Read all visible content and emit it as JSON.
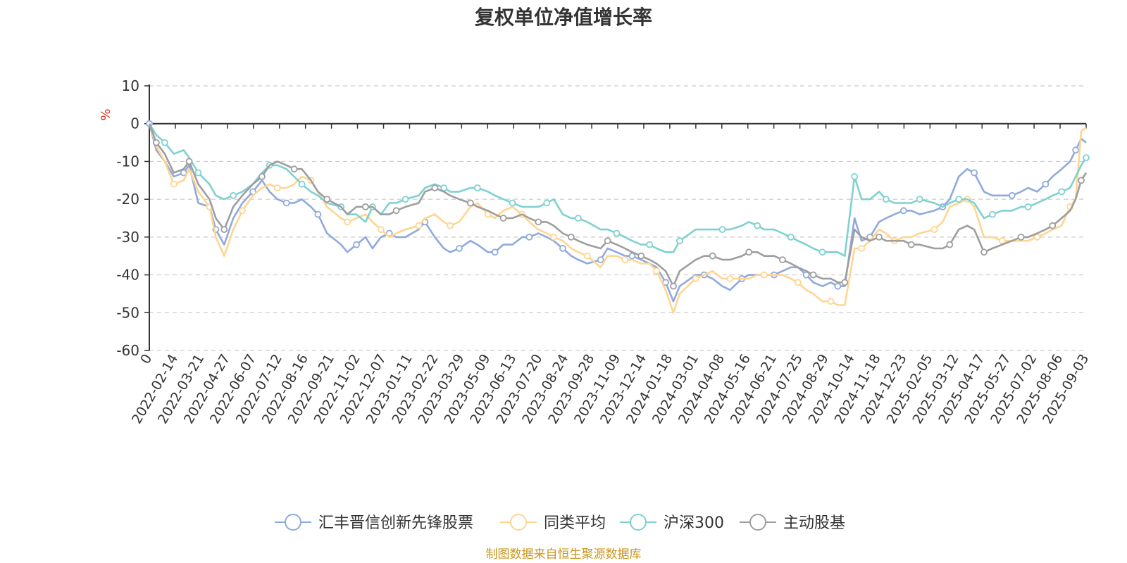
{
  "chart_data": {
    "type": "line",
    "title": "复权单位净值增长率",
    "ylabel": "%",
    "ylim": [
      -60,
      10
    ],
    "yticks": [
      10,
      0,
      -10,
      -20,
      -30,
      -40,
      -50,
      -60
    ],
    "grid": true,
    "legend_position": "bottom",
    "x_start_label": "0",
    "x_tick_labels": [
      "2022-02-14",
      "2022-03-21",
      "2022-04-27",
      "2022-06-07",
      "2022-07-12",
      "2022-08-16",
      "2022-09-21",
      "2022-11-02",
      "2022-12-07",
      "2023-01-11",
      "2023-02-22",
      "2023-03-29",
      "2023-05-09",
      "2023-06-13",
      "2023-07-20",
      "2023-08-24",
      "2023-09-28",
      "2023-11-09",
      "2023-12-14",
      "2024-01-18",
      "2024-03-01",
      "2024-04-08",
      "2024-05-16",
      "2024-06-21",
      "2024-07-25",
      "2024-08-29",
      "2024-10-14",
      "2024-11-18",
      "2024-12-23",
      "2025-02-05",
      "2025-03-12",
      "2025-04-17",
      "2025-05-27",
      "2025-07-02",
      "2025-08-06",
      "2025-09-03"
    ],
    "x": [
      "2022-01-10",
      "2022-01-20",
      "2022-02-01",
      "2022-02-14",
      "2022-02-28",
      "2022-03-08",
      "2022-03-21",
      "2022-04-06",
      "2022-04-15",
      "2022-04-27",
      "2022-05-10",
      "2022-05-23",
      "2022-06-07",
      "2022-06-20",
      "2022-07-01",
      "2022-07-12",
      "2022-07-25",
      "2022-08-05",
      "2022-08-16",
      "2022-08-29",
      "2022-09-08",
      "2022-09-21",
      "2022-10-11",
      "2022-10-20",
      "2022-11-02",
      "2022-11-15",
      "2022-11-25",
      "2022-12-07",
      "2022-12-19",
      "2022-12-29",
      "2023-01-11",
      "2023-01-30",
      "2023-02-08",
      "2023-02-22",
      "2023-03-07",
      "2023-03-16",
      "2023-03-29",
      "2023-04-14",
      "2023-04-24",
      "2023-05-09",
      "2023-05-19",
      "2023-05-31",
      "2023-06-13",
      "2023-06-27",
      "2023-07-07",
      "2023-07-20",
      "2023-08-01",
      "2023-08-11",
      "2023-08-24",
      "2023-09-05",
      "2023-09-15",
      "2023-09-28",
      "2023-10-17",
      "2023-10-27",
      "2023-11-09",
      "2023-11-21",
      "2023-12-01",
      "2023-12-14",
      "2023-12-26",
      "2024-01-05",
      "2024-01-18",
      "2024-01-29",
      "2024-02-07",
      "2024-03-01",
      "2024-03-13",
      "2024-03-25",
      "2024-04-08",
      "2024-04-19",
      "2024-05-06",
      "2024-05-16",
      "2024-05-28",
      "2024-06-07",
      "2024-06-21",
      "2024-07-03",
      "2024-07-15",
      "2024-07-25",
      "2024-08-06",
      "2024-08-16",
      "2024-08-29",
      "2024-09-10",
      "2024-09-20",
      "2024-09-30",
      "2024-10-14",
      "2024-10-24",
      "2024-11-05",
      "2024-11-18",
      "2024-11-28",
      "2024-12-10",
      "2024-12-23",
      "2025-01-03",
      "2025-01-15",
      "2025-02-05",
      "2025-02-17",
      "2025-02-27",
      "2025-03-12",
      "2025-03-24",
      "2025-04-03",
      "2025-04-17",
      "2025-04-29",
      "2025-05-13",
      "2025-05-27",
      "2025-06-09",
      "2025-06-19",
      "2025-07-02",
      "2025-07-14",
      "2025-07-24",
      "2025-08-06",
      "2025-08-18",
      "2025-08-26",
      "2025-09-03",
      "2025-09-10"
    ],
    "series": [
      {
        "name": "汇丰晋信创新先锋股票",
        "color": "#8faadc",
        "values": [
          0,
          -7,
          -10,
          -14,
          -13,
          -11,
          -21,
          -22,
          -28,
          -32,
          -25,
          -21,
          -18,
          -15,
          -18,
          -20,
          -21,
          -21,
          -20,
          -22,
          -24,
          -29,
          -32,
          -34,
          -32,
          -30,
          -33,
          -30,
          -29,
          -30,
          -30,
          -28,
          -26,
          -30,
          -33,
          -34,
          -33,
          -31,
          -32,
          -34,
          -34,
          -32,
          -32,
          -30,
          -30,
          -29,
          -30,
          -31,
          -33,
          -35,
          -36,
          -37,
          -36,
          -33,
          -34,
          -35,
          -35,
          -36,
          -37,
          -38,
          -42,
          -47,
          -43,
          -40,
          -40,
          -41,
          -43,
          -44,
          -41,
          -40,
          -40,
          -40,
          -40,
          -39,
          -38,
          -38,
          -40,
          -42,
          -43,
          -42,
          -43,
          -43,
          -25,
          -31,
          -30,
          -26,
          -25,
          -24,
          -23,
          -23,
          -24,
          -23,
          -22,
          -20,
          -14,
          -12,
          -13,
          -18,
          -19,
          -19,
          -19,
          -18,
          -17,
          -18,
          -16,
          -14,
          -12,
          -10,
          -7,
          -4,
          -5
        ]
      },
      {
        "name": "同类平均",
        "color": "#ffd591",
        "values": [
          0,
          -6,
          -10,
          -16,
          -15,
          -12,
          -18,
          -22,
          -30,
          -35,
          -28,
          -23,
          -19,
          -17,
          -16,
          -17,
          -17,
          -16,
          -14,
          -15,
          -18,
          -22,
          -25,
          -26,
          -25,
          -24,
          -26,
          -28,
          -30,
          -29,
          -28,
          -27,
          -25,
          -24,
          -26,
          -27,
          -26,
          -22,
          -21,
          -24,
          -25,
          -23,
          -22,
          -24,
          -26,
          -28,
          -29,
          -30,
          -31,
          -33,
          -34,
          -35,
          -38,
          -35,
          -35,
          -36,
          -36,
          -37,
          -37,
          -39,
          -44,
          -50,
          -45,
          -41,
          -40,
          -39,
          -41,
          -41,
          -41,
          -41,
          -40,
          -40,
          -40,
          -40,
          -41,
          -42,
          -44,
          -45,
          -47,
          -47,
          -48,
          -48,
          -33,
          -33,
          -31,
          -28,
          -29,
          -31,
          -30,
          -30,
          -29,
          -28,
          -26,
          -22,
          -21,
          -20,
          -22,
          -30,
          -30,
          -31,
          -31,
          -31,
          -31,
          -30,
          -29,
          -28,
          -27,
          -22,
          -20,
          -2,
          -1
        ]
      },
      {
        "name": "沪深300",
        "color": "#7fd1d1",
        "values": [
          0,
          -3,
          -5,
          -8,
          -7,
          -9,
          -13,
          -16,
          -19,
          -20,
          -19,
          -18,
          -16,
          -13,
          -11,
          -11,
          -12,
          -14,
          -16,
          -18,
          -19,
          -21,
          -22,
          -24,
          -24,
          -26,
          -22,
          -24,
          -21,
          -21,
          -20,
          -19,
          -17,
          -16,
          -17,
          -18,
          -18,
          -17,
          -17,
          -18,
          -19,
          -20,
          -21,
          -22,
          -22,
          -22,
          -21,
          -20,
          -24,
          -25,
          -25,
          -26,
          -28,
          -28,
          -29,
          -30,
          -31,
          -32,
          -32,
          -33,
          -34,
          -34,
          -31,
          -28,
          -28,
          -28,
          -28,
          -28,
          -27,
          -26,
          -27,
          -28,
          -28,
          -29,
          -30,
          -31,
          -32,
          -33,
          -34,
          -34,
          -34,
          -35,
          -14,
          -20,
          -20,
          -18,
          -20,
          -21,
          -21,
          -21,
          -20,
          -21,
          -22,
          -21,
          -20,
          -20,
          -21,
          -25,
          -24,
          -23,
          -23,
          -22,
          -22,
          -21,
          -20,
          -19,
          -18,
          -17,
          -14,
          -11,
          -9
        ]
      },
      {
        "name": "主动股基",
        "color": "#9e9e9e",
        "values": [
          0,
          -5,
          -8,
          -13,
          -12,
          -10,
          -16,
          -20,
          -25,
          -28,
          -22,
          -19,
          -16,
          -14,
          -11,
          -10,
          -11,
          -12,
          -12,
          -15,
          -18,
          -20,
          -22,
          -24,
          -22,
          -22,
          -22,
          -24,
          -24,
          -23,
          -22,
          -21,
          -18,
          -17,
          -18,
          -19,
          -20,
          -21,
          -22,
          -23,
          -24,
          -25,
          -25,
          -24,
          -25,
          -26,
          -26,
          -27,
          -29,
          -30,
          -31,
          -32,
          -33,
          -31,
          -32,
          -33,
          -34,
          -35,
          -36,
          -37,
          -39,
          -43,
          -39,
          -36,
          -35,
          -35,
          -36,
          -36,
          -35,
          -34,
          -34,
          -35,
          -35,
          -36,
          -37,
          -38,
          -39,
          -40,
          -41,
          -41,
          -42,
          -42,
          -28,
          -30,
          -31,
          -30,
          -31,
          -31,
          -31,
          -32,
          -32,
          -33,
          -33,
          -32,
          -28,
          -27,
          -28,
          -34,
          -33,
          -32,
          -31,
          -30,
          -30,
          -29,
          -28,
          -27,
          -25,
          -23,
          -20,
          -15,
          -13
        ]
      }
    ],
    "source_note": "制图数据来自恒生聚源数据库"
  }
}
